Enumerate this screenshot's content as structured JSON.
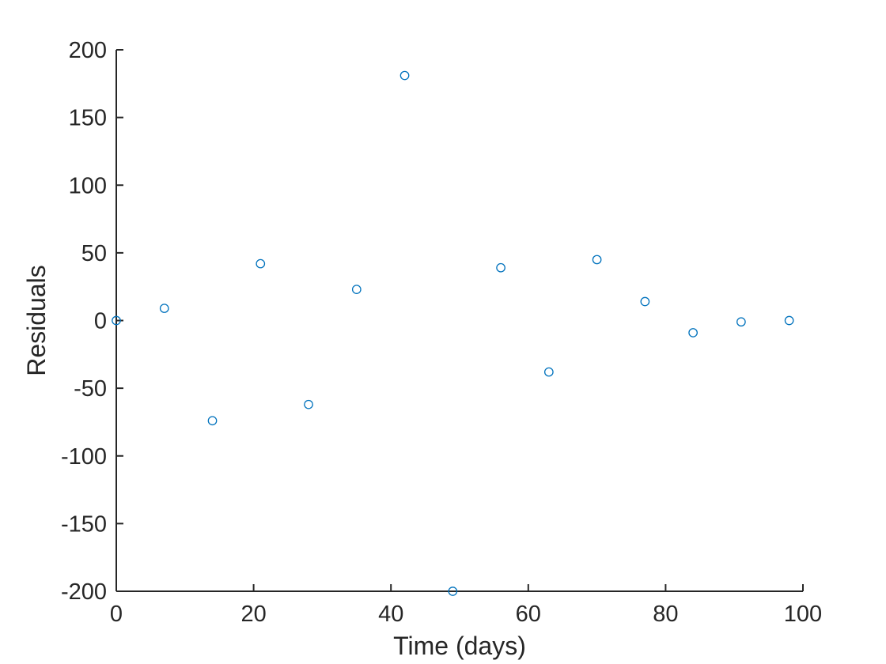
{
  "chart_data": {
    "type": "scatter",
    "title": "",
    "xlabel": "Time (days)",
    "ylabel": "Residuals",
    "xlim": [
      0,
      100
    ],
    "ylim": [
      -200,
      200
    ],
    "xticks": [
      0,
      20,
      40,
      60,
      80,
      100
    ],
    "yticks": [
      -200,
      -150,
      -100,
      -50,
      0,
      50,
      100,
      150,
      200
    ],
    "grid": false,
    "marker": "circle-open",
    "series": [
      {
        "color": "#0072BD",
        "points": [
          {
            "x": 0,
            "y": 0
          },
          {
            "x": 7,
            "y": 9
          },
          {
            "x": 14,
            "y": -74
          },
          {
            "x": 21,
            "y": 42
          },
          {
            "x": 28,
            "y": -62
          },
          {
            "x": 35,
            "y": 23
          },
          {
            "x": 42,
            "y": 181
          },
          {
            "x": 49,
            "y": -200
          },
          {
            "x": 56,
            "y": 39
          },
          {
            "x": 63,
            "y": -38
          },
          {
            "x": 70,
            "y": 45
          },
          {
            "x": 77,
            "y": 14
          },
          {
            "x": 84,
            "y": -9
          },
          {
            "x": 91,
            "y": -1
          },
          {
            "x": 98,
            "y": 0
          }
        ]
      }
    ]
  }
}
